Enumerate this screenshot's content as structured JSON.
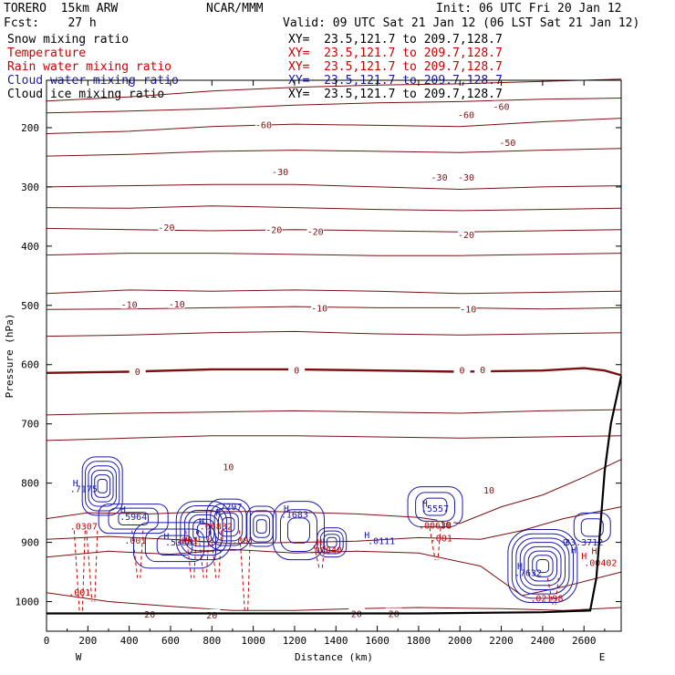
{
  "header": {
    "title": "TORERO  15km ARW",
    "fcst": "Fcst:    27 h",
    "center": "NCAR/MMM",
    "init": "Init: 06 UTC Fri 20 Jan 12",
    "valid": "Valid: 09 UTC Sat 21 Jan 12 (06 LST Sat 21 Jan 12)"
  },
  "legend": [
    {
      "name": "Snow mixing ratio",
      "color": "#000000",
      "xy": "XY=  23.5,121.7 to 209.7,128.7"
    },
    {
      "name": "Temperature",
      "color": "#cc0000",
      "xy": "XY=  23.5,121.7 to 209.7,128.7"
    },
    {
      "name": "Rain water mixing ratio",
      "color": "#cc0000",
      "xy": "XY=  23.5,121.7 to 209.7,128.7"
    },
    {
      "name": "Cloud water mixing ratio",
      "color": "#1a1aaa",
      "xy": "XY=  23.5,121.7 to 209.7,128.7"
    },
    {
      "name": "Cloud ice mixing ratio",
      "color": "#000000",
      "xy": "XY=  23.5,121.7 to 209.7,128.7"
    }
  ],
  "colors": {
    "temperature": "#7a1010",
    "rain": "#cc0000",
    "cloud_water": "#1a1aaa",
    "terrain": "#000000"
  },
  "chart_data": {
    "type": "line",
    "xlabel": "Distance (km)",
    "ylabel": "Pressure (hPa)",
    "xlim": [
      0,
      2780
    ],
    "ylim": [
      1050,
      120
    ],
    "xticks": [
      0,
      200,
      400,
      600,
      800,
      1000,
      1200,
      1400,
      1600,
      1800,
      2000,
      2200,
      2400,
      2600
    ],
    "yticks": [
      200,
      300,
      400,
      500,
      600,
      700,
      800,
      900,
      1000
    ],
    "left_end_label": "W",
    "right_end_label": "E",
    "isotherms": [
      {
        "t": -60,
        "points": [
          [
            0,
            155
          ],
          [
            400,
            148
          ],
          [
            800,
            138
          ],
          [
            1200,
            132
          ],
          [
            1600,
            128
          ],
          [
            2000,
            126
          ],
          [
            2400,
            122
          ],
          [
            2780,
            118
          ]
        ]
      },
      {
        "t": -60,
        "points": [
          [
            0,
            175
          ],
          [
            400,
            172
          ],
          [
            800,
            168
          ],
          [
            1200,
            162
          ],
          [
            1600,
            158
          ],
          [
            2000,
            156
          ],
          [
            2400,
            152
          ],
          [
            2780,
            150
          ]
        ]
      },
      {
        "t": -50,
        "points": [
          [
            0,
            210
          ],
          [
            400,
            206
          ],
          [
            800,
            198
          ],
          [
            1200,
            194
          ],
          [
            1600,
            196
          ],
          [
            2000,
            198
          ],
          [
            2400,
            190
          ],
          [
            2780,
            184
          ]
        ]
      },
      {
        "t": -40,
        "points": [
          [
            0,
            248
          ],
          [
            400,
            245
          ],
          [
            800,
            240
          ],
          [
            1200,
            238
          ],
          [
            1600,
            240
          ],
          [
            2000,
            242
          ],
          [
            2400,
            238
          ],
          [
            2780,
            235
          ]
        ]
      },
      {
        "t": -30,
        "points": [
          [
            0,
            300
          ],
          [
            400,
            298
          ],
          [
            800,
            296
          ],
          [
            1200,
            296
          ],
          [
            1600,
            300
          ],
          [
            2000,
            304
          ],
          [
            2400,
            300
          ],
          [
            2780,
            298
          ]
        ]
      },
      {
        "t": -30,
        "points": [
          [
            0,
            335
          ],
          [
            400,
            336
          ],
          [
            800,
            332
          ],
          [
            1200,
            335
          ],
          [
            1600,
            338
          ],
          [
            2000,
            340
          ],
          [
            2400,
            338
          ],
          [
            2780,
            336
          ]
        ]
      },
      {
        "t": -20,
        "points": [
          [
            0,
            370
          ],
          [
            400,
            372
          ],
          [
            800,
            374
          ],
          [
            1200,
            372
          ],
          [
            1600,
            374
          ],
          [
            2000,
            376
          ],
          [
            2400,
            374
          ],
          [
            2780,
            372
          ]
        ]
      },
      {
        "t": -20,
        "points": [
          [
            0,
            415
          ],
          [
            400,
            412
          ],
          [
            800,
            412
          ],
          [
            1200,
            414
          ],
          [
            1600,
            416
          ],
          [
            2000,
            416
          ],
          [
            2400,
            414
          ],
          [
            2780,
            412
          ]
        ]
      },
      {
        "t": -10,
        "points": [
          [
            0,
            480
          ],
          [
            400,
            474
          ],
          [
            800,
            476
          ],
          [
            1200,
            474
          ],
          [
            1600,
            476
          ],
          [
            2000,
            480
          ],
          [
            2400,
            478
          ],
          [
            2780,
            476
          ]
        ]
      },
      {
        "t": -10,
        "points": [
          [
            0,
            507
          ],
          [
            400,
            506
          ],
          [
            800,
            504
          ],
          [
            1200,
            502
          ],
          [
            1600,
            504
          ],
          [
            2000,
            504
          ],
          [
            2400,
            506
          ],
          [
            2780,
            504
          ]
        ]
      },
      {
        "t": -10,
        "points": [
          [
            0,
            552
          ],
          [
            400,
            550
          ],
          [
            800,
            546
          ],
          [
            1200,
            544
          ],
          [
            1600,
            548
          ],
          [
            2000,
            550
          ],
          [
            2400,
            548
          ],
          [
            2780,
            546
          ]
        ]
      },
      {
        "t": 0,
        "bold": true,
        "points": [
          [
            0,
            614
          ],
          [
            400,
            612
          ],
          [
            800,
            608
          ],
          [
            1200,
            608
          ],
          [
            1600,
            610
          ],
          [
            2000,
            612
          ],
          [
            2400,
            610
          ],
          [
            2600,
            606
          ],
          [
            2700,
            610
          ],
          [
            2780,
            618
          ]
        ]
      },
      {
        "t": 0,
        "points": [
          [
            0,
            685
          ],
          [
            400,
            682
          ],
          [
            800,
            680
          ],
          [
            1200,
            678
          ],
          [
            1600,
            680
          ],
          [
            2000,
            682
          ],
          [
            2400,
            678
          ],
          [
            2780,
            676
          ]
        ]
      },
      {
        "t": 10,
        "points": [
          [
            0,
            728
          ],
          [
            400,
            724
          ],
          [
            800,
            720
          ],
          [
            1200,
            720
          ],
          [
            1600,
            722
          ],
          [
            2000,
            724
          ],
          [
            2400,
            722
          ],
          [
            2780,
            720
          ]
        ]
      },
      {
        "t": 10,
        "points": [
          [
            0,
            860
          ],
          [
            200,
            850
          ],
          [
            500,
            852
          ],
          [
            800,
            848
          ],
          [
            1100,
            848
          ],
          [
            1500,
            852
          ],
          [
            1800,
            858
          ],
          [
            2000,
            868
          ],
          [
            2200,
            840
          ],
          [
            2400,
            820
          ],
          [
            2600,
            790
          ],
          [
            2780,
            760
          ]
        ]
      },
      {
        "t": 10,
        "points": [
          [
            0,
            895
          ],
          [
            300,
            890
          ],
          [
            600,
            895
          ],
          [
            900,
            902
          ],
          [
            1200,
            900
          ],
          [
            1500,
            898
          ],
          [
            1800,
            892
          ],
          [
            2100,
            895
          ],
          [
            2300,
            880
          ],
          [
            2500,
            860
          ],
          [
            2780,
            840
          ]
        ]
      },
      {
        "t": 20,
        "points": [
          [
            0,
            925
          ],
          [
            300,
            915
          ],
          [
            600,
            920
          ],
          [
            900,
            912
          ],
          [
            1200,
            918
          ],
          [
            1500,
            915
          ],
          [
            1800,
            918
          ],
          [
            2100,
            940
          ],
          [
            2300,
            990
          ],
          [
            2500,
            975
          ],
          [
            2780,
            950
          ]
        ]
      },
      {
        "t": 20,
        "points": [
          [
            0,
            985
          ],
          [
            300,
            1000
          ],
          [
            600,
            1008
          ],
          [
            900,
            1015
          ],
          [
            1200,
            1015
          ],
          [
            1500,
            1012
          ],
          [
            1800,
            1010
          ],
          [
            2200,
            1012
          ],
          [
            2500,
            1015
          ],
          [
            2780,
            1010
          ]
        ]
      }
    ],
    "contour_labels": [
      {
        "t": "-60",
        "x": 2030,
        "y": 178
      },
      {
        "t": "-60",
        "x": 2200,
        "y": 164
      },
      {
        "t": "-60",
        "x": 1050,
        "y": 195
      },
      {
        "t": "-50",
        "x": 2230,
        "y": 225
      },
      {
        "t": "-30",
        "x": 1130,
        "y": 274
      },
      {
        "t": "-30",
        "x": 1900,
        "y": 283
      },
      {
        "t": "-30",
        "x": 2030,
        "y": 283
      },
      {
        "t": "-20",
        "x": 580,
        "y": 368
      },
      {
        "t": "-20",
        "x": 1100,
        "y": 372
      },
      {
        "t": "-20",
        "x": 1300,
        "y": 375
      },
      {
        "t": "-20",
        "x": 2030,
        "y": 380
      },
      {
        "t": "-10",
        "x": 400,
        "y": 498
      },
      {
        "t": "-10",
        "x": 630,
        "y": 497
      },
      {
        "t": "-10",
        "x": 1320,
        "y": 504
      },
      {
        "t": "-10",
        "x": 2040,
        "y": 506
      },
      {
        "t": "0",
        "x": 440,
        "y": 611
      },
      {
        "t": "0",
        "x": 1210,
        "y": 609
      },
      {
        "t": "0",
        "x": 2010,
        "y": 609
      },
      {
        "t": "0",
        "x": 2110,
        "y": 608
      },
      {
        "t": "10",
        "x": 880,
        "y": 772
      },
      {
        "t": "10",
        "x": 2140,
        "y": 811
      },
      {
        "t": "10",
        "x": 1930,
        "y": 870
      },
      {
        "t": "20",
        "x": 500,
        "y": 1021
      },
      {
        "t": "20",
        "x": 800,
        "y": 1022
      },
      {
        "t": "20",
        "x": 1500,
        "y": 1020
      },
      {
        "t": "20",
        "x": 1680,
        "y": 1020
      }
    ],
    "terrain": [
      [
        0,
        1020
      ],
      [
        600,
        1020
      ],
      [
        1200,
        1020
      ],
      [
        1800,
        1020
      ],
      [
        2400,
        1018
      ],
      [
        2630,
        1015
      ],
      [
        2660,
        960
      ],
      [
        2700,
        780
      ],
      [
        2730,
        700
      ],
      [
        2780,
        620
      ]
    ],
    "cloud_water_labels": [
      {
        "t": "H",
        "x": 140,
        "y": 805
      },
      {
        "t": ".7175",
        "x": 180,
        "y": 815
      },
      {
        "t": "H",
        "x": 370,
        "y": 850
      },
      {
        "t": ".5964",
        "x": 420,
        "y": 862
      },
      {
        "t": "H",
        "x": 580,
        "y": 895
      },
      {
        "t": ".5366",
        "x": 640,
        "y": 905
      },
      {
        "t": "H",
        "x": 750,
        "y": 870
      },
      {
        "t": "H",
        "x": 830,
        "y": 855
      },
      {
        "t": ".7297",
        "x": 880,
        "y": 845
      },
      {
        "t": "H",
        "x": 1160,
        "y": 848
      },
      {
        "t": ".1683",
        "x": 1200,
        "y": 858
      },
      {
        "t": "H",
        "x": 1550,
        "y": 893
      },
      {
        "t": ".0111",
        "x": 1620,
        "y": 903
      },
      {
        "t": "H",
        "x": 1830,
        "y": 840
      },
      {
        "t": ".5557",
        "x": 1880,
        "y": 848
      },
      {
        "t": "H",
        "x": 2290,
        "y": 945
      },
      {
        "t": ".7632",
        "x": 2330,
        "y": 957
      },
      {
        "t": "H",
        "x": 2550,
        "y": 918
      },
      {
        "t": "9",
        "x": 2510,
        "y": 905
      },
      {
        "t": "33.3712",
        "x": 2600,
        "y": 905
      }
    ],
    "rain_labels": [
      {
        "t": ".0307",
        "x": 180,
        "y": 878
      },
      {
        "t": ".001",
        "x": 430,
        "y": 902
      },
      {
        "t": ".001",
        "x": 680,
        "y": 902
      },
      {
        "t": ".06832",
        "x": 820,
        "y": 878
      },
      {
        "t": ".001",
        "x": 950,
        "y": 902
      },
      {
        "t": "H",
        "x": 1320,
        "y": 905
      },
      {
        "t": ".00040",
        "x": 1350,
        "y": 918
      },
      {
        "t": ".00638",
        "x": 1880,
        "y": 877
      },
      {
        "t": ".001",
        "x": 1910,
        "y": 898
      },
      {
        "t": ".001",
        "x": 160,
        "y": 990
      },
      {
        "t": "H",
        "x": 2600,
        "y": 928
      },
      {
        "t": ".00402",
        "x": 2680,
        "y": 940
      },
      {
        "t": ".02198",
        "x": 2420,
        "y": 1000
      },
      {
        "t": "H",
        "x": 2650,
        "y": 920
      }
    ],
    "cloud_centers": [
      {
        "x": 270,
        "y": 805,
        "n": 6,
        "rx": 22,
        "ry": 32
      },
      {
        "x": 420,
        "y": 860,
        "n": 3,
        "rx": 38,
        "ry": 16
      },
      {
        "x": 620,
        "y": 905,
        "n": 3,
        "rx": 45,
        "ry": 25
      },
      {
        "x": 760,
        "y": 880,
        "n": 6,
        "rx": 30,
        "ry": 32
      },
      {
        "x": 880,
        "y": 870,
        "n": 5,
        "rx": 24,
        "ry": 28
      },
      {
        "x": 1040,
        "y": 873,
        "n": 4,
        "rx": 16,
        "ry": 22
      },
      {
        "x": 1220,
        "y": 880,
        "n": 3,
        "rx": 28,
        "ry": 32
      },
      {
        "x": 1380,
        "y": 900,
        "n": 4,
        "rx": 16,
        "ry": 16
      },
      {
        "x": 1880,
        "y": 840,
        "n": 3,
        "rx": 30,
        "ry": 22
      },
      {
        "x": 2400,
        "y": 940,
        "n": 8,
        "rx": 38,
        "ry": 40
      },
      {
        "x": 2640,
        "y": 875,
        "n": 2,
        "rx": 20,
        "ry": 16
      }
    ],
    "rain_columns": [
      {
        "x": 160,
        "top": 880,
        "bottom": 1020
      },
      {
        "x": 220,
        "top": 880,
        "bottom": 1000
      },
      {
        "x": 440,
        "top": 880,
        "bottom": 960
      },
      {
        "x": 700,
        "top": 880,
        "bottom": 960
      },
      {
        "x": 760,
        "top": 880,
        "bottom": 960
      },
      {
        "x": 820,
        "top": 880,
        "bottom": 960
      },
      {
        "x": 960,
        "top": 880,
        "bottom": 1020
      },
      {
        "x": 1320,
        "top": 905,
        "bottom": 945
      },
      {
        "x": 1880,
        "top": 875,
        "bottom": 930
      },
      {
        "x": 2450,
        "top": 960,
        "bottom": 1005
      }
    ]
  }
}
